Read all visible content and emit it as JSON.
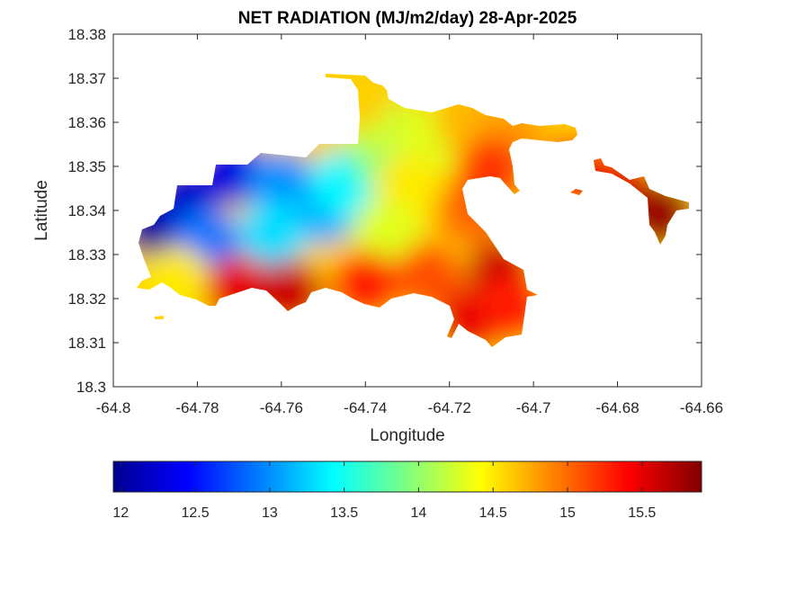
{
  "chart_data": {
    "type": "heatmap",
    "title": "NET RADIATION (MJ/m2/day) 28-Apr-2025",
    "xlabel": "Longitude",
    "ylabel": "Latitude",
    "xlim": [
      -64.8,
      -64.66
    ],
    "ylim": [
      18.3,
      18.38
    ],
    "x_ticks": [
      "-64.8",
      "-64.78",
      "-64.76",
      "-64.74",
      "-64.72",
      "-64.7",
      "-64.68",
      "-64.66"
    ],
    "y_ticks": [
      "18.3",
      "18.31",
      "18.32",
      "18.33",
      "18.34",
      "18.35",
      "18.36",
      "18.37",
      "18.38"
    ],
    "colormap": "jet",
    "colorbar": {
      "location": "bottom",
      "range": [
        11.95,
        15.9
      ],
      "ticks": [
        "12",
        "12.5",
        "13",
        "13.5",
        "14",
        "14.5",
        "15",
        "15.5"
      ]
    },
    "field_samples": [
      {
        "lon": -64.79,
        "lat": 18.337,
        "value": 12.0
      },
      {
        "lon": -64.783,
        "lat": 18.343,
        "value": 12.2
      },
      {
        "lon": -64.772,
        "lat": 18.349,
        "value": 12.3
      },
      {
        "lon": -64.778,
        "lat": 18.333,
        "value": 12.9
      },
      {
        "lon": -64.76,
        "lat": 18.346,
        "value": 13.0
      },
      {
        "lon": -64.75,
        "lat": 18.34,
        "value": 13.1
      },
      {
        "lon": -64.762,
        "lat": 18.335,
        "value": 13.3
      },
      {
        "lon": -64.745,
        "lat": 18.346,
        "value": 13.4
      },
      {
        "lon": -64.735,
        "lat": 18.352,
        "value": 13.9
      },
      {
        "lon": -64.738,
        "lat": 18.36,
        "value": 14.2
      },
      {
        "lon": -64.742,
        "lat": 18.366,
        "value": 14.6
      },
      {
        "lon": -64.725,
        "lat": 18.356,
        "value": 14.3
      },
      {
        "lon": -64.715,
        "lat": 18.36,
        "value": 14.7
      },
      {
        "lon": -64.705,
        "lat": 18.357,
        "value": 14.8
      },
      {
        "lon": -64.73,
        "lat": 18.345,
        "value": 14.5
      },
      {
        "lon": -64.735,
        "lat": 18.335,
        "value": 14.3
      },
      {
        "lon": -64.785,
        "lat": 18.324,
        "value": 14.5
      },
      {
        "lon": -64.77,
        "lat": 18.322,
        "value": 15.5
      },
      {
        "lon": -64.758,
        "lat": 18.321,
        "value": 15.6
      },
      {
        "lon": -64.74,
        "lat": 18.323,
        "value": 15.3
      },
      {
        "lon": -64.725,
        "lat": 18.325,
        "value": 15.1
      },
      {
        "lon": -64.715,
        "lat": 18.34,
        "value": 15.0
      },
      {
        "lon": -64.708,
        "lat": 18.326,
        "value": 15.6
      },
      {
        "lon": -64.715,
        "lat": 18.315,
        "value": 15.5
      },
      {
        "lon": -64.705,
        "lat": 18.318,
        "value": 15.3
      },
      {
        "lon": -64.71,
        "lat": 18.349,
        "value": 15.2
      },
      {
        "lon": -64.69,
        "lat": 18.349,
        "value": 15.3
      },
      {
        "lon": -64.68,
        "lat": 18.345,
        "value": 15.5
      },
      {
        "lon": -64.67,
        "lat": 18.339,
        "value": 15.8
      }
    ]
  }
}
